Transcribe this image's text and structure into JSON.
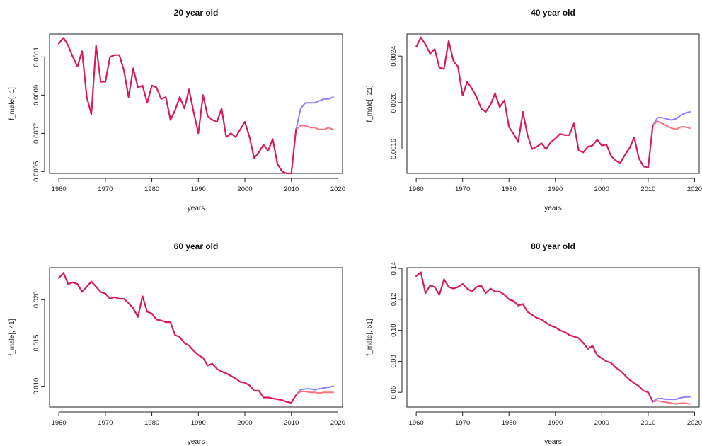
{
  "chart_data": [
    {
      "type": "line",
      "title": "20 year old",
      "xlabel": "years",
      "ylabel": "f_male[, 1]",
      "xlim": [
        1958,
        2021
      ],
      "ylim": [
        0.00049,
        0.00122
      ],
      "xticks": [
        1960,
        1970,
        1980,
        1990,
        2000,
        2010,
        2020
      ],
      "xtick_labels": [
        "1960",
        "1970",
        "1980",
        "1990",
        "2000",
        "2010",
        "2020"
      ],
      "yticks": [
        0.0005,
        0.0007,
        0.0009,
        0.0011
      ],
      "ytick_labels": [
        "0.0005",
        "0.0007",
        "0.0009",
        "0.0011"
      ],
      "history": {
        "x": [
          1960,
          1961,
          1962,
          1963,
          1964,
          1965,
          1966,
          1967,
          1968,
          1969,
          1970,
          1971,
          1972,
          1973,
          1974,
          1975,
          1976,
          1977,
          1978,
          1979,
          1980,
          1981,
          1982,
          1983,
          1984,
          1985,
          1986,
          1987,
          1988,
          1989,
          1990,
          1991,
          1992,
          1993,
          1994,
          1995,
          1996,
          1997,
          1998,
          1999,
          2000,
          2001,
          2002,
          2003,
          2004,
          2005,
          2006,
          2007,
          2008,
          2009,
          2010,
          2011
        ],
        "y": [
          0.00117,
          0.0012,
          0.00116,
          0.0011,
          0.00105,
          0.00113,
          0.00089,
          0.0008,
          0.00116,
          0.00097,
          0.00097,
          0.0011,
          0.00111,
          0.00111,
          0.00103,
          0.00089,
          0.00104,
          0.00094,
          0.00095,
          0.00086,
          0.00095,
          0.00094,
          0.00088,
          0.00089,
          0.00077,
          0.00082,
          0.00089,
          0.00083,
          0.00093,
          0.00081,
          0.0007,
          0.0009,
          0.00079,
          0.00077,
          0.00076,
          0.00083,
          0.00068,
          0.0007,
          0.00068,
          0.00072,
          0.00076,
          0.00068,
          0.00057,
          0.0006,
          0.00064,
          0.00061,
          0.00067,
          0.00054,
          0.0005,
          0.00049,
          0.00049,
          0.00072
        ]
      },
      "series": [
        {
          "color": "#8a7cff",
          "x": [
            2011,
            2012,
            2013,
            2014,
            2015,
            2016,
            2017,
            2018,
            2019
          ],
          "y": [
            0.00072,
            0.00083,
            0.00086,
            0.00086,
            0.00086,
            0.00087,
            0.00088,
            0.00088,
            0.00089
          ]
        },
        {
          "color": "#ff6f7c",
          "x": [
            2011,
            2012,
            2013,
            2014,
            2015,
            2016,
            2017,
            2018,
            2019
          ],
          "y": [
            0.00072,
            0.00074,
            0.00074,
            0.00073,
            0.00073,
            0.00072,
            0.00072,
            0.00073,
            0.00072
          ]
        }
      ]
    },
    {
      "type": "line",
      "title": "40 year old",
      "xlabel": "years",
      "ylabel": "f_male[, 21]",
      "xlim": [
        1958,
        2021
      ],
      "ylim": [
        0.00139,
        0.00259
      ],
      "xticks": [
        1960,
        1970,
        1980,
        1990,
        2000,
        2010,
        2020
      ],
      "xtick_labels": [
        "1960",
        "1970",
        "1980",
        "1990",
        "2000",
        "2010",
        "2020"
      ],
      "yticks": [
        0.0016,
        0.002,
        0.0024
      ],
      "ytick_labels": [
        "0.0016",
        "0.0020",
        "0.0024"
      ],
      "history": {
        "x": [
          1960,
          1961,
          1962,
          1963,
          1964,
          1965,
          1966,
          1967,
          1968,
          1969,
          1970,
          1971,
          1972,
          1973,
          1974,
          1975,
          1976,
          1977,
          1978,
          1979,
          1980,
          1981,
          1982,
          1983,
          1984,
          1985,
          1986,
          1987,
          1988,
          1989,
          1990,
          1991,
          1992,
          1993,
          1994,
          1995,
          1996,
          1997,
          1998,
          1999,
          2000,
          2001,
          2002,
          2003,
          2004,
          2005,
          2006,
          2007,
          2008,
          2009,
          2010,
          2011
        ],
        "y": [
          0.00248,
          0.00256,
          0.0025,
          0.00242,
          0.00246,
          0.0023,
          0.00229,
          0.00253,
          0.00236,
          0.00231,
          0.00206,
          0.00218,
          0.00212,
          0.00205,
          0.00195,
          0.00192,
          0.00198,
          0.00208,
          0.00196,
          0.00202,
          0.00179,
          0.00173,
          0.00166,
          0.00192,
          0.00172,
          0.0016,
          0.00162,
          0.00165,
          0.0016,
          0.00166,
          0.00169,
          0.00173,
          0.00172,
          0.00172,
          0.00182,
          0.00159,
          0.00157,
          0.00162,
          0.00163,
          0.00168,
          0.00163,
          0.00164,
          0.00154,
          0.0015,
          0.00148,
          0.00155,
          0.00161,
          0.0017,
          0.00152,
          0.00145,
          0.00144,
          0.0018
        ]
      },
      "series": [
        {
          "color": "#8a7cff",
          "x": [
            2011,
            2012,
            2013,
            2014,
            2015,
            2016,
            2017,
            2018,
            2019
          ],
          "y": [
            0.0018,
            0.00187,
            0.00187,
            0.00186,
            0.00185,
            0.00186,
            0.00189,
            0.00191,
            0.00192
          ]
        },
        {
          "color": "#ff6f7c",
          "x": [
            2011,
            2012,
            2013,
            2014,
            2015,
            2016,
            2017,
            2018,
            2019
          ],
          "y": [
            0.0018,
            0.00184,
            0.00182,
            0.0018,
            0.00178,
            0.00177,
            0.00179,
            0.00179,
            0.00178
          ]
        }
      ]
    },
    {
      "type": "line",
      "title": "60 year old",
      "xlabel": "years",
      "ylabel": "f_male[, 41]",
      "xlim": [
        1958,
        2021
      ],
      "ylim": [
        0.0076,
        0.0237
      ],
      "xticks": [
        1960,
        1970,
        1980,
        1990,
        2000,
        2010,
        2020
      ],
      "xtick_labels": [
        "1960",
        "1970",
        "1980",
        "1990",
        "2000",
        "2010",
        "2020"
      ],
      "yticks": [
        0.01,
        0.015,
        0.02
      ],
      "ytick_labels": [
        "0.010",
        "0.015",
        "0.020"
      ],
      "history": {
        "x": [
          1960,
          1961,
          1962,
          1963,
          1964,
          1965,
          1966,
          1967,
          1968,
          1969,
          1970,
          1971,
          1972,
          1973,
          1974,
          1975,
          1976,
          1977,
          1978,
          1979,
          1980,
          1981,
          1982,
          1983,
          1984,
          1985,
          1986,
          1987,
          1988,
          1989,
          1990,
          1991,
          1992,
          1993,
          1994,
          1995,
          1996,
          1997,
          1998,
          1999,
          2000,
          2001,
          2002,
          2003,
          2004,
          2005,
          2006,
          2007,
          2008,
          2009,
          2010,
          2011
        ],
        "y": [
          0.0225,
          0.0231,
          0.0218,
          0.022,
          0.0218,
          0.0209,
          0.0215,
          0.0221,
          0.0215,
          0.0209,
          0.0207,
          0.0201,
          0.0203,
          0.0201,
          0.0201,
          0.0196,
          0.019,
          0.018,
          0.0204,
          0.0186,
          0.0184,
          0.0177,
          0.0176,
          0.0174,
          0.0174,
          0.0159,
          0.0157,
          0.015,
          0.0147,
          0.0141,
          0.0136,
          0.0133,
          0.0124,
          0.0126,
          0.012,
          0.0117,
          0.0115,
          0.0112,
          0.0109,
          0.0105,
          0.0104,
          0.0101,
          0.0095,
          0.0095,
          0.0087,
          0.0087,
          0.0086,
          0.0085,
          0.0084,
          0.0082,
          0.0081,
          0.009
        ]
      },
      "series": [
        {
          "color": "#8a7cff",
          "x": [
            2011,
            2012,
            2013,
            2014,
            2015,
            2016,
            2017,
            2018,
            2019
          ],
          "y": [
            0.009,
            0.0096,
            0.0097,
            0.0097,
            0.0096,
            0.0097,
            0.0098,
            0.0099,
            0.01
          ]
        },
        {
          "color": "#ff6f7c",
          "x": [
            2011,
            2012,
            2013,
            2014,
            2015,
            2016,
            2017,
            2018,
            2019
          ],
          "y": [
            0.009,
            0.0094,
            0.0094,
            0.0093,
            0.0093,
            0.0092,
            0.0093,
            0.0093,
            0.0093
          ]
        }
      ]
    },
    {
      "type": "line",
      "title": "80 year old",
      "xlabel": "years",
      "ylabel": "f_male[, 61]",
      "xlim": [
        1958,
        2021
      ],
      "ylim": [
        0.0505,
        0.1405
      ],
      "xticks": [
        1960,
        1970,
        1980,
        1990,
        2000,
        2010,
        2020
      ],
      "xtick_labels": [
        "1960",
        "1970",
        "1980",
        "1990",
        "2000",
        "2010",
        "2020"
      ],
      "yticks": [
        0.06,
        0.08,
        0.1,
        0.12,
        0.14
      ],
      "ytick_labels": [
        "0.06",
        "0.08",
        "0.10",
        "0.12",
        "0.14"
      ],
      "history": {
        "x": [
          1960,
          1961,
          1962,
          1963,
          1964,
          1965,
          1966,
          1967,
          1968,
          1969,
          1970,
          1971,
          1972,
          1973,
          1974,
          1975,
          1976,
          1977,
          1978,
          1979,
          1980,
          1981,
          1982,
          1983,
          1984,
          1985,
          1986,
          1987,
          1988,
          1989,
          1990,
          1991,
          1992,
          1993,
          1994,
          1995,
          1996,
          1997,
          1998,
          1999,
          2000,
          2001,
          2002,
          2003,
          2004,
          2005,
          2006,
          2007,
          2008,
          2009,
          2010,
          2011
        ],
        "y": [
          0.135,
          0.1375,
          0.124,
          0.129,
          0.128,
          0.123,
          0.133,
          0.128,
          0.127,
          0.128,
          0.13,
          0.127,
          0.125,
          0.128,
          0.129,
          0.124,
          0.127,
          0.125,
          0.125,
          0.123,
          0.12,
          0.119,
          0.116,
          0.117,
          0.112,
          0.11,
          0.108,
          0.107,
          0.105,
          0.103,
          0.102,
          0.1,
          0.099,
          0.097,
          0.096,
          0.095,
          0.092,
          0.088,
          0.09,
          0.084,
          0.082,
          0.08,
          0.079,
          0.076,
          0.074,
          0.071,
          0.068,
          0.066,
          0.064,
          0.061,
          0.06,
          0.054
        ]
      },
      "series": [
        {
          "color": "#8a7cff",
          "x": [
            2011,
            2012,
            2013,
            2014,
            2015,
            2016,
            2017,
            2018,
            2019
          ],
          "y": [
            0.054,
            0.056,
            0.056,
            0.0555,
            0.0555,
            0.0555,
            0.0565,
            0.057,
            0.057
          ]
        },
        {
          "color": "#ff6f7c",
          "x": [
            2011,
            2012,
            2013,
            2014,
            2015,
            2016,
            2017,
            2018,
            2019
          ],
          "y": [
            0.054,
            0.0545,
            0.054,
            0.0535,
            0.053,
            0.0525,
            0.053,
            0.053,
            0.0525
          ]
        }
      ]
    }
  ]
}
